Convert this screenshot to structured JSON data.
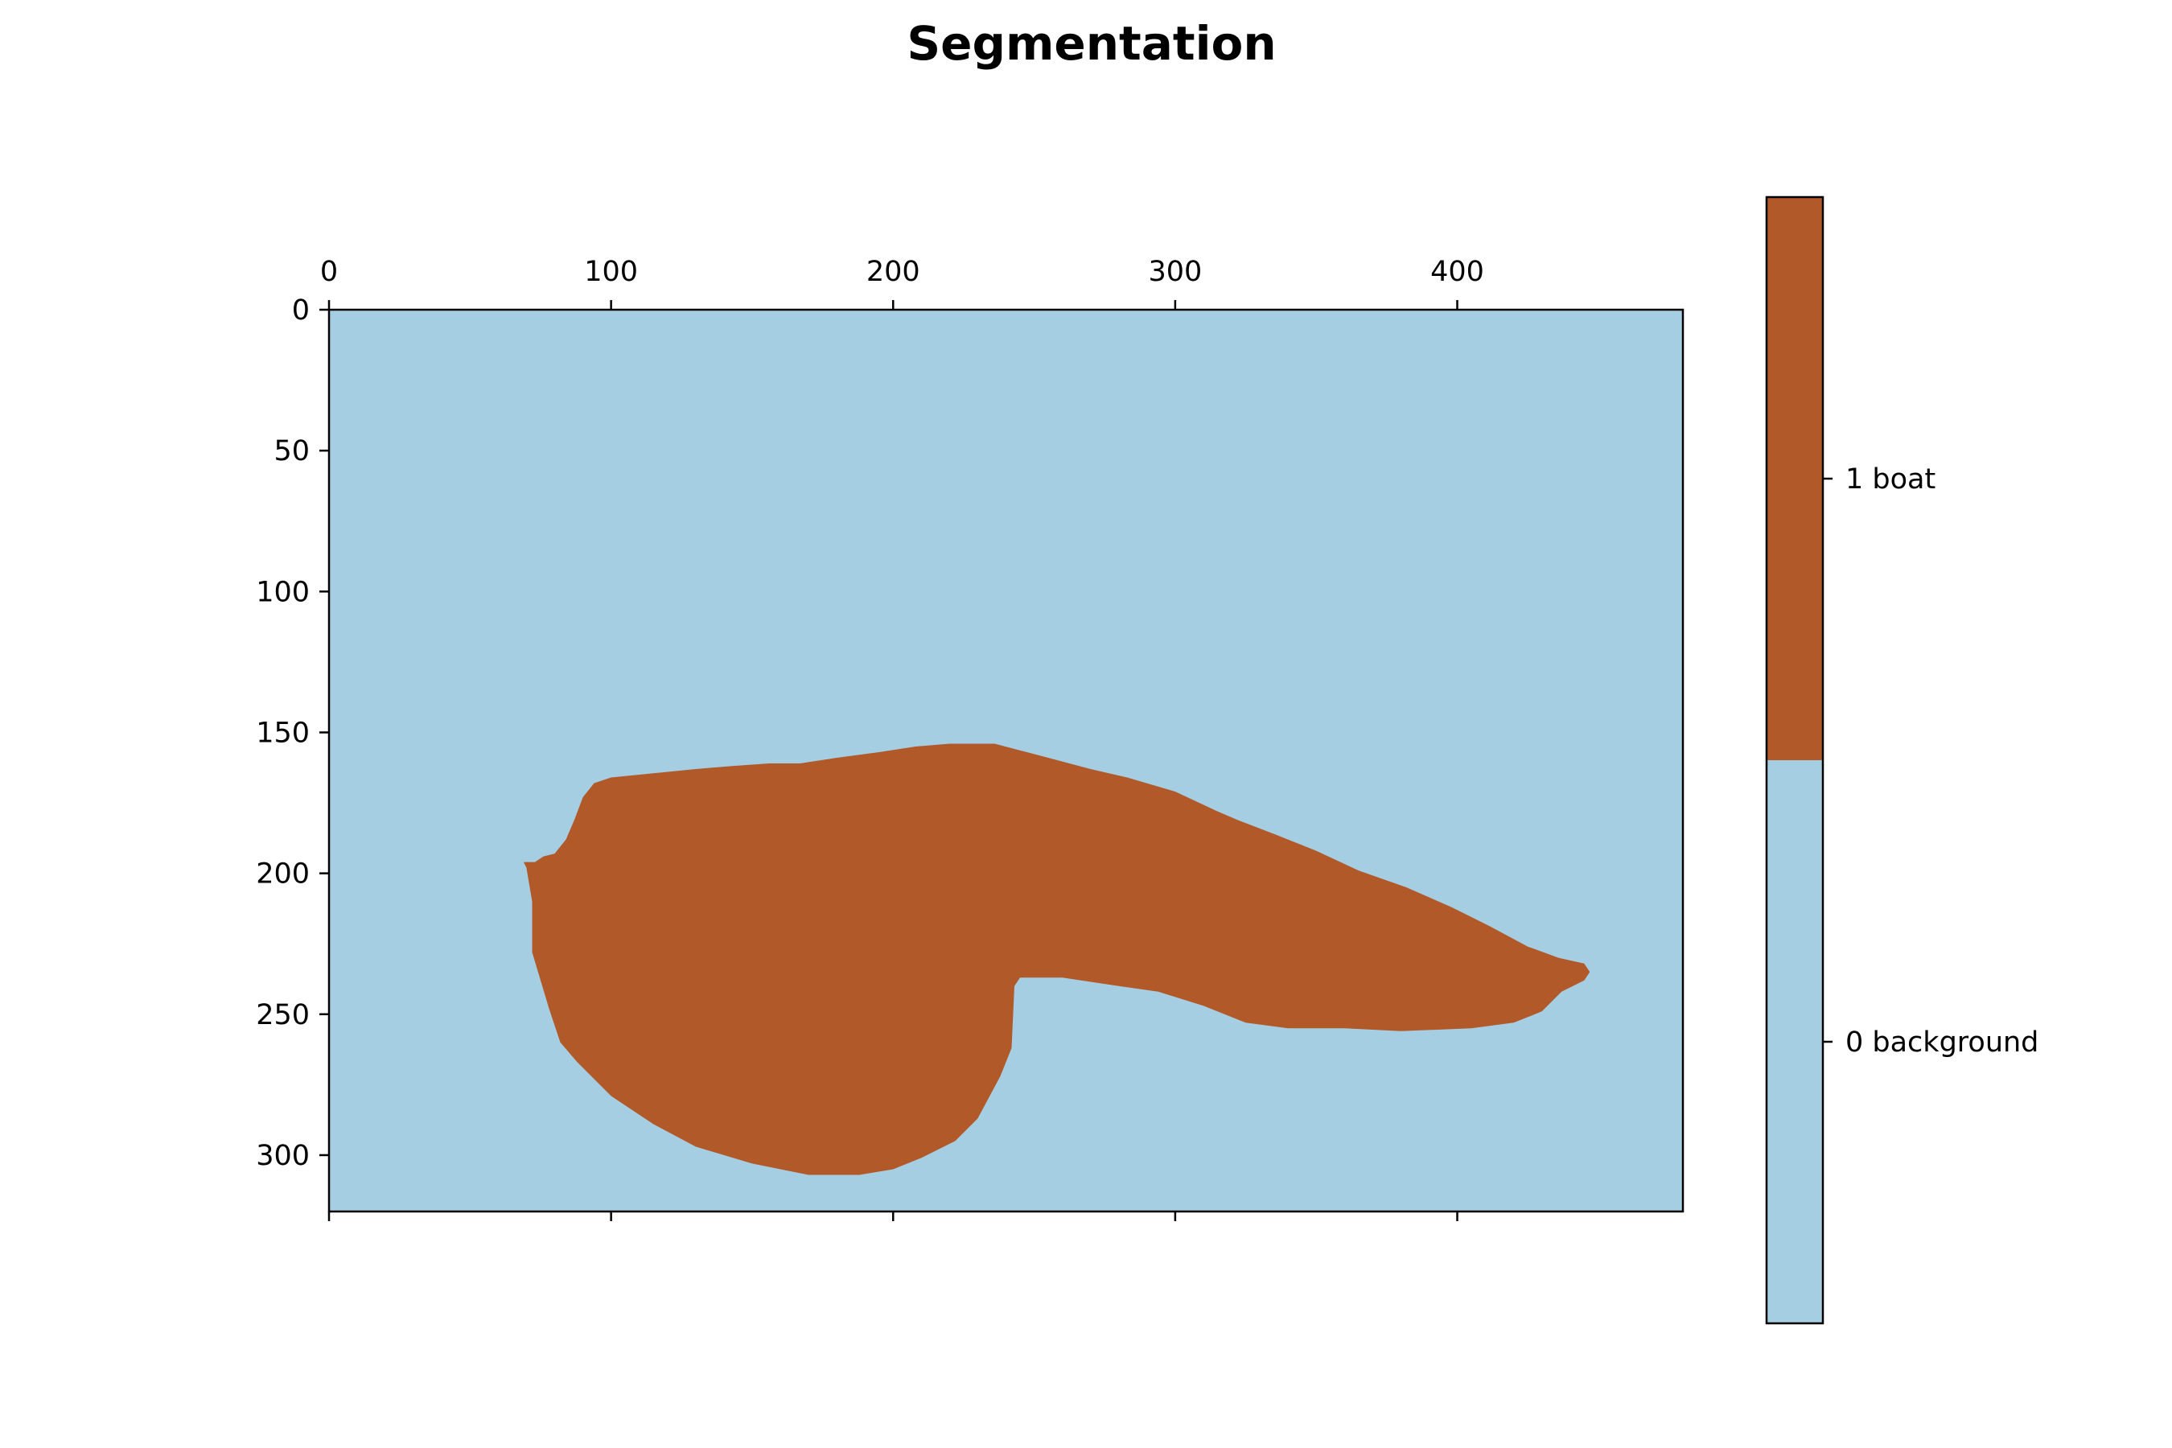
{
  "chart_data": {
    "type": "heatmap",
    "title": "Segmentation",
    "xlabel": "",
    "ylabel": "",
    "xlim": [
      0,
      480
    ],
    "ylim": [
      320,
      0
    ],
    "x_ticks": [
      0,
      100,
      200,
      300,
      400
    ],
    "y_ticks": [
      0,
      50,
      100,
      150,
      200,
      250,
      300
    ],
    "x_tick_labels": [
      "0",
      "100",
      "200",
      "300",
      "400"
    ],
    "y_tick_labels": [
      "0",
      "50",
      "100",
      "150",
      "200",
      "250",
      "300"
    ],
    "classes": [
      {
        "value": 0,
        "label": "0 background",
        "color": "#a6cee3"
      },
      {
        "value": 1,
        "label": "1 boat",
        "color": "#b15928"
      }
    ],
    "boat_region_outline": [
      [
        69,
        196
      ],
      [
        73,
        196
      ],
      [
        76,
        194
      ],
      [
        80,
        193
      ],
      [
        84,
        188
      ],
      [
        87,
        181
      ],
      [
        90,
        173
      ],
      [
        94,
        168
      ],
      [
        97,
        167
      ],
      [
        100,
        166
      ],
      [
        120,
        164
      ],
      [
        130,
        163
      ],
      [
        142,
        162
      ],
      [
        156,
        161
      ],
      [
        167,
        161
      ],
      [
        180,
        159
      ],
      [
        195,
        157
      ],
      [
        208,
        155
      ],
      [
        220,
        154
      ],
      [
        236,
        154
      ],
      [
        255,
        159
      ],
      [
        270,
        163
      ],
      [
        283,
        166
      ],
      [
        300,
        171
      ],
      [
        315,
        178
      ],
      [
        322,
        181
      ],
      [
        335,
        186
      ],
      [
        350,
        192
      ],
      [
        365,
        199
      ],
      [
        382,
        205
      ],
      [
        398,
        212
      ],
      [
        412,
        219
      ],
      [
        425,
        226
      ],
      [
        436,
        230
      ],
      [
        445,
        232
      ],
      [
        447,
        235
      ],
      [
        445,
        238
      ],
      [
        437,
        242
      ],
      [
        430,
        249
      ],
      [
        420,
        253
      ],
      [
        405,
        255
      ],
      [
        380,
        256
      ],
      [
        360,
        255
      ],
      [
        340,
        255
      ],
      [
        325,
        253
      ],
      [
        310,
        247
      ],
      [
        294,
        242
      ],
      [
        280,
        240
      ],
      [
        260,
        237
      ],
      [
        245,
        237
      ],
      [
        243,
        240
      ],
      [
        242,
        262
      ],
      [
        238,
        272
      ],
      [
        230,
        287
      ],
      [
        222,
        295
      ],
      [
        210,
        301
      ],
      [
        200,
        305
      ],
      [
        188,
        307
      ],
      [
        170,
        307
      ],
      [
        150,
        303
      ],
      [
        130,
        297
      ],
      [
        115,
        289
      ],
      [
        100,
        279
      ],
      [
        88,
        267
      ],
      [
        82,
        260
      ],
      [
        78,
        248
      ],
      [
        75,
        238
      ],
      [
        72,
        228
      ],
      [
        72,
        210
      ],
      [
        70,
        198
      ]
    ],
    "colorbar_position": "right",
    "grid": false,
    "x_axis_ticks_position": "top"
  }
}
